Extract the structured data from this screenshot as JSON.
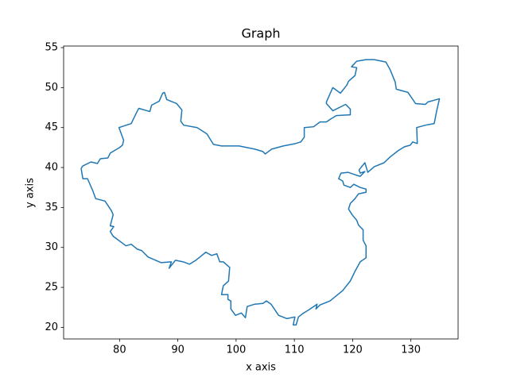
{
  "chart_data": {
    "type": "line",
    "title": "Graph",
    "x_label": "x axis",
    "y_label": "y axis",
    "color": "#1f77b4",
    "x": [
      73.4,
      73.7,
      75.1,
      76.2,
      76.7,
      78.0,
      78.4,
      80.0,
      80.5,
      80.7,
      79.9,
      82.0,
      83.0,
      83.3,
      85.2,
      85.5,
      86.8,
      87.4,
      87.7,
      88.1,
      89.8,
      90.7,
      90.5,
      91.0,
      93.3,
      95.0,
      96.1,
      97.5,
      100.5,
      103.2,
      104.6,
      105.0,
      106.1,
      108.1,
      110.2,
      111.1,
      111.7,
      111.7,
      113.3,
      114.4,
      115.5,
      116.3,
      117.2,
      119.6,
      119.6,
      118.8,
      116.6,
      115.5,
      115.5,
      116.6,
      117.9,
      119.0,
      119.3,
      120.4,
      120.7,
      119.8,
      120.7,
      122.3,
      123.7,
      125.7,
      126.4,
      127.3,
      127.5,
      129.5,
      130.8,
      132.5,
      132.9,
      134.9,
      134.4,
      134.0,
      132.5,
      131.0,
      131.1,
      130.3,
      129.9,
      128.9,
      127.8,
      126.4,
      125.4,
      123.7,
      122.6,
      122.1,
      121.1,
      121.3,
      122.1,
      121.3,
      120.4,
      119.2,
      118.0,
      117.6,
      118.3,
      118.5,
      119.6,
      120.2,
      121.3,
      122.3,
      122.3,
      121.0,
      120.4,
      119.6,
      119.3,
      119.9,
      120.7,
      121.0,
      121.8,
      121.8,
      122.3,
      122.3,
      121.3,
      120.4,
      119.6,
      118.3,
      116.1,
      114.4,
      113.7,
      113.9,
      112.5,
      111.4,
      110.7,
      110.3,
      109.8,
      110.1,
      108.7,
      107.3,
      106.0,
      105.2,
      104.6,
      103.2,
      101.9,
      101.6,
      100.9,
      99.9,
      99.1,
      99.1,
      98.6,
      98.6,
      97.5,
      97.8,
      98.7,
      98.9,
      97.8,
      97.2,
      96.7,
      95.8,
      94.8,
      93.1,
      92.0,
      90.9,
      89.6,
      88.5,
      88.9,
      87.1,
      84.9,
      83.8,
      83.0,
      82.0,
      81.1,
      78.9,
      78.4,
      79.0,
      78.4,
      78.9,
      78.6,
      77.5,
      75.9,
      75.4,
      74.5,
      73.7,
      73.4
    ],
    "values": [
      39.9,
      40.2,
      40.7,
      40.5,
      41.1,
      41.2,
      41.8,
      42.5,
      42.8,
      43.4,
      45.0,
      45.5,
      47.0,
      47.4,
      47.0,
      47.8,
      48.3,
      49.3,
      49.4,
      48.5,
      48.0,
      47.2,
      45.8,
      45.3,
      45.0,
      44.2,
      42.9,
      42.7,
      42.7,
      42.3,
      42.0,
      41.7,
      42.3,
      42.7,
      43.0,
      43.2,
      43.8,
      45.0,
      45.1,
      45.7,
      45.7,
      46.1,
      46.5,
      46.6,
      47.3,
      47.9,
      47.1,
      48.0,
      48.2,
      50.0,
      49.3,
      50.3,
      50.8,
      51.5,
      52.5,
      52.6,
      53.3,
      53.5,
      53.5,
      53.2,
      52.3,
      50.7,
      49.8,
      49.4,
      48.0,
      47.9,
      48.2,
      48.6,
      47.0,
      45.5,
      45.3,
      45.0,
      43.0,
      43.2,
      42.8,
      42.6,
      42.1,
      41.3,
      40.6,
      40.1,
      39.4,
      40.6,
      39.7,
      39.3,
      39.5,
      38.9,
      39.1,
      39.4,
      39.3,
      38.6,
      38.3,
      37.8,
      37.5,
      37.9,
      37.5,
      37.3,
      36.9,
      36.7,
      36.1,
      35.5,
      34.8,
      34.1,
      33.4,
      32.8,
      32.2,
      30.9,
      30.2,
      28.7,
      28.2,
      27.0,
      25.8,
      24.6,
      23.3,
      22.8,
      22.3,
      22.9,
      22.2,
      21.7,
      21.3,
      20.3,
      20.3,
      21.3,
      21.1,
      21.5,
      22.9,
      23.3,
      23.0,
      22.9,
      22.6,
      21.2,
      21.8,
      21.5,
      22.3,
      23.3,
      23.5,
      24.1,
      24.1,
      25.2,
      25.8,
      27.5,
      28.2,
      28.2,
      29.2,
      29.0,
      29.4,
      28.4,
      27.9,
      28.2,
      28.4,
      27.4,
      28.2,
      28.1,
      28.8,
      29.6,
      29.8,
      30.4,
      30.2,
      31.4,
      32.0,
      32.6,
      32.7,
      34.1,
      34.6,
      35.8,
      36.1,
      37.1,
      38.6,
      38.6,
      39.9
    ],
    "xlim": [
      70.4,
      138.1
    ],
    "ylim": [
      18.55,
      55.2
    ],
    "xticks": [
      80,
      90,
      100,
      110,
      120,
      130
    ],
    "yticks": [
      20,
      25,
      30,
      35,
      40,
      45,
      50,
      55
    ]
  }
}
